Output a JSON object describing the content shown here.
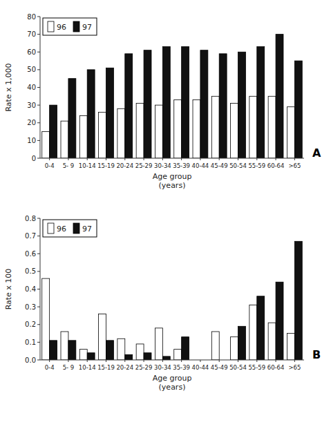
{
  "chart_data": [
    {
      "type": "bar",
      "title": "A",
      "categories": [
        "0-4",
        "5- 9",
        "10-14",
        "15-19",
        "20-24",
        "25-29",
        "30-34",
        "35-39",
        "40-44",
        "45-49",
        "50-54",
        "55-59",
        "60-64",
        ">65"
      ],
      "series": [
        {
          "name": "96",
          "color": "#ffffff",
          "values": [
            15,
            21,
            24,
            26,
            28,
            31,
            30,
            33,
            33,
            35,
            31,
            35,
            35,
            29
          ]
        },
        {
          "name": "97",
          "color": "#111111",
          "values": [
            30,
            45,
            50,
            51,
            59,
            61,
            63,
            63,
            61,
            59,
            60,
            63,
            70,
            55
          ]
        }
      ],
      "x_label": "Age group\n(years)",
      "y_label": "Rate x 1,000",
      "ylim": [
        0,
        80
      ],
      "yticks": [
        0,
        10,
        20,
        30,
        40,
        50,
        60,
        70,
        80
      ],
      "grid": false,
      "legend": "upper left"
    },
    {
      "type": "bar",
      "title": "B",
      "categories": [
        "0-4",
        "5- 9",
        "10-14",
        "15-19",
        "20-24",
        "25-29",
        "30-34",
        "35-39",
        "40-44",
        "45-49",
        "50-54",
        "55-59",
        "60-64",
        ">65"
      ],
      "series": [
        {
          "name": "96",
          "color": "#ffffff",
          "values": [
            0.46,
            0.16,
            0.06,
            0.26,
            0.12,
            0.09,
            0.18,
            0.06,
            0.0,
            0.16,
            0.13,
            0.31,
            0.21,
            0.15
          ]
        },
        {
          "name": "97",
          "color": "#111111",
          "values": [
            0.11,
            0.11,
            0.04,
            0.11,
            0.03,
            0.04,
            0.02,
            0.13,
            0.0,
            0.0,
            0.19,
            0.36,
            0.44,
            0.67
          ]
        }
      ],
      "x_label": "Age group\n(years)",
      "y_label": "Rate x 100",
      "ylim": [
        0,
        0.8
      ],
      "yticks": [
        {
          "value": 0.0,
          "label": "0.0"
        },
        0.1,
        0.2,
        0.3,
        0.4,
        0.5,
        0.6,
        0.7,
        0.8
      ],
      "grid": false,
      "legend": "upper left"
    }
  ]
}
